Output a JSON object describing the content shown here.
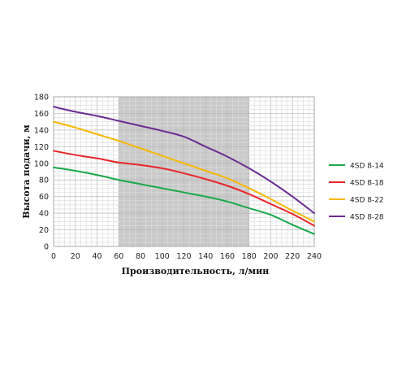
{
  "chart_data": {
    "type": "line",
    "title": "",
    "xlabel": "Производительность, л/мин",
    "ylabel": "Высота подачи, м",
    "xlim": [
      0,
      240
    ],
    "ylim": [
      0,
      180
    ],
    "xticks": [
      0,
      20,
      40,
      60,
      80,
      100,
      120,
      140,
      160,
      180,
      200,
      220,
      240
    ],
    "yticks": [
      0,
      20,
      40,
      60,
      80,
      100,
      120,
      140,
      160,
      180
    ],
    "grid": true,
    "shaded_range": [
      60,
      180
    ],
    "legend_position": "right",
    "series": [
      {
        "name": "4SD 8-14",
        "color": "#1aa84b",
        "x": [
          0,
          20,
          40,
          60,
          80,
          100,
          120,
          140,
          160,
          180,
          200,
          220,
          240
        ],
        "y": [
          95,
          91,
          86,
          80,
          75,
          70,
          65,
          60,
          54,
          46,
          38,
          26,
          15
        ]
      },
      {
        "name": "4SD 8-18",
        "color": "#e8262a",
        "x": [
          0,
          20,
          40,
          60,
          80,
          100,
          120,
          140,
          160,
          180,
          200,
          220,
          240
        ],
        "y": [
          115,
          110,
          106,
          101,
          98,
          94,
          88,
          81,
          73,
          63,
          51,
          39,
          25
        ]
      },
      {
        "name": "4SD 8-22",
        "color": "#f6b800",
        "x": [
          0,
          20,
          40,
          60,
          80,
          100,
          120,
          140,
          160,
          180,
          200,
          220,
          240
        ],
        "y": [
          150,
          143,
          135,
          127,
          118,
          109,
          100,
          91,
          82,
          70,
          57,
          43,
          30
        ]
      },
      {
        "name": "4SD 8-28",
        "color": "#6a2d91",
        "x": [
          0,
          20,
          40,
          60,
          80,
          100,
          120,
          140,
          160,
          180,
          200,
          220,
          240
        ],
        "y": [
          168,
          162,
          157,
          151,
          145,
          139,
          132,
          120,
          108,
          94,
          78,
          60,
          40
        ]
      }
    ]
  }
}
